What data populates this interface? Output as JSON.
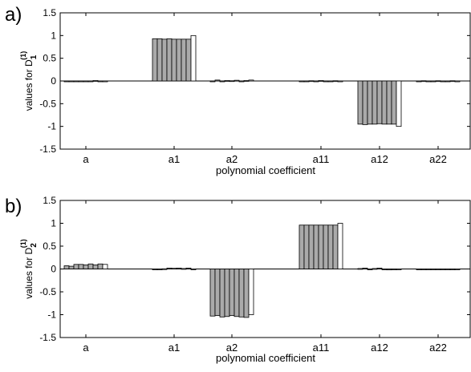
{
  "chart_data": [
    {
      "type": "bar",
      "panel_label": "a)",
      "categories": [
        "a",
        "a1",
        "a2",
        "a11",
        "a12",
        "a22"
      ],
      "xlabel": "polynomial coefficient",
      "ylabel": {
        "text": "values for D",
        "sub": "1",
        "sup": "(1)"
      },
      "ylim": [
        -1.5,
        1.5
      ],
      "yticks": [
        "1.5",
        "1",
        "0.5",
        "0",
        "-0.5",
        "-1",
        "-1.5"
      ],
      "bars_per_group": 9,
      "bar_colors": {
        "estimate": "#aaaaaa",
        "true_value": "#ffffff"
      },
      "groups": [
        [
          -0.01,
          -0.005,
          -0.01,
          0.0,
          -0.015,
          0.0,
          0.01,
          0.0,
          -0.01
        ],
        [
          0.93,
          0.93,
          0.92,
          0.93,
          0.92,
          0.92,
          0.92,
          0.92,
          1.0
        ],
        [
          -0.01,
          0.02,
          -0.005,
          0.01,
          0.005,
          0.015,
          0.0,
          0.01,
          0.02
        ],
        [
          -0.005,
          0.0,
          0.005,
          -0.005,
          0.01,
          0.0,
          -0.005,
          0.005,
          0.0
        ],
        [
          -0.95,
          -0.96,
          -0.95,
          -0.95,
          -0.94,
          -0.95,
          -0.95,
          -0.95,
          -1.0
        ],
        [
          0.0,
          0.005,
          -0.005,
          0.0,
          0.005,
          -0.005,
          0.0,
          0.005,
          0.0
        ]
      ]
    },
    {
      "type": "bar",
      "panel_label": "b)",
      "categories": [
        "a",
        "a1",
        "a2",
        "a11",
        "a12",
        "a22"
      ],
      "xlabel": "polynomial coefficient",
      "ylabel": {
        "text": "values for D",
        "sub": "2",
        "sup": "(1)"
      },
      "ylim": [
        -1.5,
        1.5
      ],
      "yticks": [
        "1.5",
        "1",
        "0.5",
        "0",
        "-0.5",
        "-1",
        "-1.5"
      ],
      "bars_per_group": 9,
      "bar_colors": {
        "estimate": "#aaaaaa",
        "true_value": "#ffffff"
      },
      "groups": [
        [
          0.07,
          0.06,
          0.1,
          0.1,
          0.09,
          0.11,
          0.09,
          0.11,
          0.1
        ],
        [
          -0.01,
          0.0,
          0.005,
          0.02,
          0.015,
          0.02,
          0.01,
          0.02,
          0.0
        ],
        [
          -1.03,
          -1.02,
          -1.05,
          -1.04,
          -1.02,
          -1.04,
          -1.05,
          -1.06,
          -1.0
        ],
        [
          0.96,
          0.96,
          0.96,
          0.96,
          0.96,
          0.96,
          0.96,
          0.96,
          1.0
        ],
        [
          0.01,
          0.02,
          -0.01,
          0.01,
          0.02,
          -0.01,
          -0.02,
          -0.015,
          0.0
        ],
        [
          -0.005,
          -0.01,
          0.0,
          -0.01,
          0.0,
          -0.005,
          -0.01,
          0.0,
          0.0
        ]
      ]
    }
  ]
}
